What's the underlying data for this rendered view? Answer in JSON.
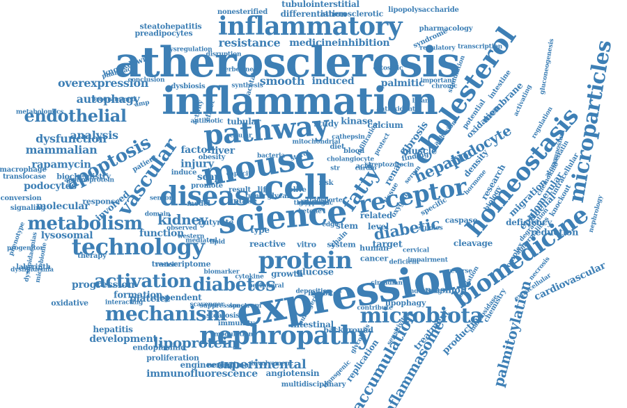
{
  "color": "#3d7fb5",
  "words": [
    {
      "text": "expression",
      "level": 5,
      "c": 0
    },
    {
      "text": "atherosclerosis",
      "level": 5,
      "c": 0
    },
    {
      "text": "inflammation",
      "level": 5,
      "c": 0
    },
    {
      "text": "science",
      "level": 5,
      "c": 0
    },
    {
      "text": "mouse",
      "level": 5,
      "c": 0
    },
    {
      "text": "pathway",
      "level": 5,
      "c": 0
    },
    {
      "text": "inflammatory",
      "level": 4,
      "c": 0
    },
    {
      "text": "technology",
      "level": 4,
      "c": 0
    },
    {
      "text": "cell",
      "level": 4,
      "c": 0
    },
    {
      "text": "protein",
      "level": 4,
      "c": 0
    },
    {
      "text": "cholesterol",
      "level": 4,
      "c": 0
    },
    {
      "text": "homeostasis",
      "level": 4,
      "c": 0
    },
    {
      "text": "microparticles",
      "level": 4,
      "c": 0
    },
    {
      "text": "biomedicine",
      "level": 4,
      "c": 0
    },
    {
      "text": "nephropathy",
      "level": 4,
      "c": 0
    },
    {
      "text": "receptor",
      "level": 4,
      "c": 0
    },
    {
      "text": "disease",
      "level": 4,
      "c": 0
    },
    {
      "text": "metabolism",
      "level": 4,
      "c": 0
    },
    {
      "text": "microbiota",
      "level": 4,
      "c": 0
    },
    {
      "text": "apoptosis",
      "level": 3,
      "c": 0
    },
    {
      "text": "vascular",
      "level": 3,
      "c": 0
    },
    {
      "text": "diabetes",
      "level": 3,
      "c": 0
    },
    {
      "text": "mechanism",
      "level": 3,
      "c": 0
    },
    {
      "text": "activation",
      "level": 3,
      "c": 0
    },
    {
      "text": "fatty",
      "level": 3,
      "c": 0
    },
    {
      "text": "diabetic",
      "level": 3,
      "c": 0
    },
    {
      "text": "endothelial",
      "level": 3,
      "c": 0
    },
    {
      "text": "hepatic",
      "level": 3,
      "c": 0
    },
    {
      "text": "podocyte",
      "level": 3,
      "c": 0
    },
    {
      "text": "kidney",
      "level": 3,
      "c": 0
    },
    {
      "text": "accumulation",
      "level": 3,
      "c": 0
    },
    {
      "text": "inflammasome",
      "level": 3,
      "c": 0
    },
    {
      "text": "palmitoylation",
      "level": 3,
      "c": 0
    },
    {
      "text": "lipoprotein",
      "level": 3,
      "c": 0
    },
    {
      "text": "experimental",
      "level": 3,
      "c": 0
    },
    {
      "text": "resistance",
      "level": 2,
      "c": 0
    },
    {
      "text": "medicine",
      "level": 2,
      "c": 0
    },
    {
      "text": "inhibition",
      "level": 2,
      "c": 0
    },
    {
      "text": "overexpression",
      "level": 2,
      "c": 0
    },
    {
      "text": "autophagy",
      "level": 2,
      "c": 0
    },
    {
      "text": "smooth",
      "level": 2,
      "c": 0
    },
    {
      "text": "induced",
      "level": 2,
      "c": 0
    },
    {
      "text": "palmitic",
      "level": 2,
      "c": 0
    },
    {
      "text": "dysfunction",
      "level": 2,
      "c": 0
    },
    {
      "text": "mammalian",
      "level": 2,
      "c": 0
    },
    {
      "text": "analysis",
      "level": 2,
      "c": 0
    },
    {
      "text": "rapamycin",
      "level": 2,
      "c": 0
    },
    {
      "text": "factor",
      "level": 2,
      "c": 0
    },
    {
      "text": "injury",
      "level": 2,
      "c": 0
    },
    {
      "text": "scap",
      "level": 2,
      "c": 0
    },
    {
      "text": "liver",
      "level": 2,
      "c": 0
    },
    {
      "text": "muscle",
      "level": 2,
      "c": 0
    },
    {
      "text": "fibrosis",
      "level": 2,
      "c": 0
    },
    {
      "text": "renal",
      "level": 2,
      "c": 0
    },
    {
      "text": "glomerular",
      "level": 2,
      "c": 0
    },
    {
      "text": "epithelial",
      "level": 2,
      "c": 0
    },
    {
      "text": "migration",
      "level": 2,
      "c": 0
    },
    {
      "text": "reduction",
      "level": 2,
      "c": 0
    },
    {
      "text": "cardiovascular",
      "level": 2,
      "c": 0
    },
    {
      "text": "glucose",
      "level": 2,
      "c": 0
    },
    {
      "text": "plasmon",
      "level": 2,
      "c": 0
    },
    {
      "text": "progression",
      "level": 2,
      "c": 0
    },
    {
      "text": "platelet",
      "level": 2,
      "c": 0
    },
    {
      "text": "development",
      "level": 2,
      "c": 0
    },
    {
      "text": "immunofluorescence",
      "level": 2,
      "c": 0
    },
    {
      "text": "function",
      "level": 2,
      "c": 0
    },
    {
      "text": "lysosomal",
      "level": 2,
      "c": 0
    },
    {
      "text": "molecular",
      "level": 2,
      "c": 0
    },
    {
      "text": "podocytes",
      "level": 2,
      "c": 0
    },
    {
      "text": "involved",
      "level": 2,
      "c": 0
    },
    {
      "text": "formation",
      "level": 2,
      "c": 0
    },
    {
      "text": "production",
      "level": 2,
      "c": 0
    },
    {
      "text": "replication",
      "level": 2,
      "c": 0
    },
    {
      "text": "treatment",
      "level": 2,
      "c": 0
    },
    {
      "text": "differentiation",
      "level": 1,
      "c": 0
    },
    {
      "text": "tubulointerstitial",
      "level": 1,
      "c": 0
    },
    {
      "text": "steatohepatitis",
      "level": 1,
      "c": 0
    },
    {
      "text": "preadipocytes",
      "level": 1,
      "c": 0
    },
    {
      "text": "knockdown",
      "level": 1,
      "c": 0
    },
    {
      "text": "atherosclerotic",
      "level": 1,
      "c": 0
    },
    {
      "text": "nonesterified",
      "level": 1,
      "c": 0
    },
    {
      "text": "lipopolysaccharide",
      "level": 1,
      "c": 0
    },
    {
      "text": "pharmacology",
      "level": 1,
      "c": 0
    },
    {
      "text": "syndrome",
      "level": 1,
      "c": 0
    },
    {
      "text": "regulatory",
      "level": 1,
      "c": 0
    },
    {
      "text": "transcription",
      "level": 1,
      "c": 0
    },
    {
      "text": "dysbiosis",
      "level": 1,
      "c": 0
    },
    {
      "text": "acetate",
      "level": 1,
      "c": 0
    },
    {
      "text": "tubular",
      "level": 1,
      "c": 0
    },
    {
      "text": "study",
      "level": 1,
      "c": 0
    },
    {
      "text": "kinase",
      "level": 1,
      "c": 0
    },
    {
      "text": "calcium",
      "level": 1,
      "c": 0
    },
    {
      "text": "related",
      "level": 1,
      "c": 0
    },
    {
      "text": "level",
      "level": 1,
      "c": 0
    },
    {
      "text": "target",
      "level": 1,
      "c": 0
    },
    {
      "text": "reactive",
      "level": 1,
      "c": 0
    },
    {
      "text": "vitro",
      "level": 1,
      "c": 0
    },
    {
      "text": "system",
      "level": 1,
      "c": 0
    },
    {
      "text": "growth",
      "level": 1,
      "c": 0
    },
    {
      "text": "stem",
      "level": 1,
      "c": 0
    },
    {
      "text": "chain",
      "level": 1,
      "c": 0
    },
    {
      "text": "type",
      "level": 1,
      "c": 0
    },
    {
      "text": "butyrate",
      "level": 1,
      "c": 0
    },
    {
      "text": "uptake",
      "level": 1,
      "c": 0
    },
    {
      "text": "promote",
      "level": 1,
      "c": 0
    },
    {
      "text": "response",
      "level": 1,
      "c": 0
    },
    {
      "text": "biochemistry",
      "level": 1,
      "c": 0
    },
    {
      "text": "macrophage",
      "level": 1,
      "c": 0
    },
    {
      "text": "translocase",
      "level": 1,
      "c": 0
    },
    {
      "text": "conversion",
      "level": 1,
      "c": 0
    },
    {
      "text": "signaling",
      "level": 1,
      "c": 0
    },
    {
      "text": "labyrinth",
      "level": 1,
      "c": 0
    },
    {
      "text": "therapy",
      "level": 1,
      "c": 0
    },
    {
      "text": "transcriptome",
      "level": 1,
      "c": 0
    },
    {
      "text": "oxidative",
      "level": 1,
      "c": 0
    },
    {
      "text": "dependent",
      "level": 1,
      "c": 0
    },
    {
      "text": "hepatitis",
      "level": 1,
      "c": 0
    },
    {
      "text": "steatosis",
      "level": 1,
      "c": 0
    },
    {
      "text": "immunity",
      "level": 1,
      "c": 0
    },
    {
      "text": "intestinal",
      "level": 1,
      "c": 0
    },
    {
      "text": "background",
      "level": 1,
      "c": 0
    },
    {
      "text": "endoplasmic",
      "level": 1,
      "c": 0
    },
    {
      "text": "proliferation",
      "level": 1,
      "c": 0
    },
    {
      "text": "engineering",
      "level": 1,
      "c": 0
    },
    {
      "text": "neointimal",
      "level": 1,
      "c": 0
    },
    {
      "text": "angiotensin",
      "level": 1,
      "c": 0
    },
    {
      "text": "multidisciplinary",
      "level": 1,
      "c": 0
    },
    {
      "text": "cleavage",
      "level": 1,
      "c": 0
    },
    {
      "text": "caspase",
      "level": 1,
      "c": 0
    },
    {
      "text": "deficiency",
      "level": 1,
      "c": 0
    },
    {
      "text": "research",
      "level": 1,
      "c": 0
    },
    {
      "text": "density",
      "level": 1,
      "c": 0
    },
    {
      "text": "oxidation",
      "level": 1,
      "c": 0
    },
    {
      "text": "membrane",
      "level": 1,
      "c": 0
    },
    {
      "text": "potential",
      "level": 1,
      "c": 0
    },
    {
      "text": "lipophagy",
      "level": 1,
      "c": 0
    },
    {
      "text": "complex",
      "level": 1,
      "c": 0
    },
    {
      "text": "chemistry",
      "level": 1,
      "c": 0
    },
    {
      "text": "necrosis",
      "level": 1,
      "c": 0
    },
    {
      "text": "extracellular",
      "level": 1,
      "c": 0
    },
    {
      "text": "intracellular",
      "level": 1,
      "c": 0
    },
    {
      "text": "knockout",
      "level": 1,
      "c": 0
    },
    {
      "text": "biology",
      "level": 1,
      "c": 0
    },
    {
      "text": "cancer",
      "level": 1,
      "c": 0
    },
    {
      "text": "human",
      "level": 1,
      "c": 0
    },
    {
      "text": "tissue",
      "level": 1,
      "c": 0
    },
    {
      "text": "oxygen",
      "level": 1,
      "c": 0
    },
    {
      "text": "life",
      "level": 1,
      "c": 0
    },
    {
      "text": "patient",
      "level": 1,
      "c": 0
    },
    {
      "text": "progenitor",
      "level": 1,
      "c": 0
    },
    {
      "text": "dyslipidemia",
      "level": 1,
      "c": 0
    },
    {
      "text": "dyslipidaemias",
      "level": 1,
      "c": 0
    },
    {
      "text": "microbiome",
      "level": 1,
      "c": 0
    },
    {
      "text": "interacting",
      "level": 1,
      "c": 0
    },
    {
      "text": "scavenger",
      "level": 1,
      "c": 0
    },
    {
      "text": "spectrum",
      "level": 1,
      "c": 0
    },
    {
      "text": "inhibitor",
      "level": 1,
      "c": 0
    },
    {
      "text": "deficient",
      "level": 1,
      "c": 0
    },
    {
      "text": "cervical",
      "level": 1,
      "c": 0
    },
    {
      "text": "underlying",
      "level": 1,
      "c": 0
    },
    {
      "text": "association",
      "level": 1,
      "c": 0
    },
    {
      "text": "regulation",
      "level": 1,
      "c": 0
    },
    {
      "text": "gluconeogenesis",
      "level": 1,
      "c": 0
    },
    {
      "text": "intestine",
      "level": 1,
      "c": 0
    },
    {
      "text": "activating",
      "level": 1,
      "c": 0
    },
    {
      "text": "mannosidase",
      "level": 1,
      "c": 0
    },
    {
      "text": "protect",
      "level": 1,
      "c": 0
    },
    {
      "text": "finding",
      "level": 1,
      "c": 0
    },
    {
      "text": "specific",
      "level": 1,
      "c": 0
    },
    {
      "text": "studies",
      "level": 1,
      "c": 0
    },
    {
      "text": "acid",
      "level": 1,
      "c": 0
    },
    {
      "text": "risk",
      "level": 1,
      "c": 0
    },
    {
      "text": "diet",
      "level": 1,
      "c": 0
    },
    {
      "text": "blood",
      "level": 1,
      "c": 0
    },
    {
      "text": "olive",
      "level": 1,
      "c": 0
    },
    {
      "text": "glycan",
      "level": 1,
      "c": 0
    },
    {
      "text": "model",
      "level": 1,
      "c": 0
    },
    {
      "text": "obesity",
      "level": 1,
      "c": 0
    },
    {
      "text": "induce",
      "level": 1,
      "c": 0
    },
    {
      "text": "result",
      "level": 1,
      "c": 0
    },
    {
      "text": "effect",
      "level": 1,
      "c": 0
    },
    {
      "text": "activity",
      "level": 1,
      "c": 0
    },
    {
      "text": "antibiotic",
      "level": 1,
      "c": 0
    },
    {
      "text": "berberine",
      "level": 1,
      "c": 0
    },
    {
      "text": "synthesis",
      "level": 1,
      "c": 0
    },
    {
      "text": "disruption",
      "level": 1,
      "c": 0
    },
    {
      "text": "dysregulation",
      "level": 1,
      "c": 0
    },
    {
      "text": "pharmacy",
      "level": 1,
      "c": 0
    },
    {
      "text": "metabolomics",
      "level": 1,
      "c": 0
    },
    {
      "text": "programmed",
      "level": 1,
      "c": 0
    },
    {
      "text": "conclusion",
      "level": 1,
      "c": 0
    },
    {
      "text": "important",
      "level": 1,
      "c": 0
    },
    {
      "text": "chronic",
      "level": 1,
      "c": 0
    },
    {
      "text": "chemokine",
      "level": 1,
      "c": 0
    },
    {
      "text": "atorvastatin",
      "level": 1,
      "c": 0
    },
    {
      "text": "symposium",
      "level": 1,
      "c": 0
    },
    {
      "text": "degradation",
      "level": 1,
      "c": 0
    },
    {
      "text": "abnormalities",
      "level": 1,
      "c": 0
    },
    {
      "text": "nephrology",
      "level": 1,
      "c": 0
    },
    {
      "text": "suppression",
      "level": 1,
      "c": 0
    },
    {
      "text": "modulation",
      "level": 1,
      "c": 0
    },
    {
      "text": "involvement",
      "level": 1,
      "c": 0
    },
    {
      "text": "transgenic",
      "level": 1,
      "c": 0
    },
    {
      "text": "puringeric",
      "level": 1,
      "c": 0
    },
    {
      "text": "apolipoprotein",
      "level": 1,
      "c": 0
    },
    {
      "text": "phenotype",
      "level": 1,
      "c": 0
    },
    {
      "text": "amp",
      "level": 1,
      "c": 0
    },
    {
      "text": "str",
      "level": 1,
      "c": 0
    },
    {
      "text": "cardio",
      "level": 1,
      "c": 0
    },
    {
      "text": "tumor",
      "level": 1,
      "c": 0
    },
    {
      "text": "ketone",
      "level": 1,
      "c": 0
    },
    {
      "text": "edge",
      "level": 1,
      "c": 0
    },
    {
      "text": "infiltration",
      "level": 1,
      "c": 0
    },
    {
      "text": "bacteria",
      "level": 1,
      "c": 0
    },
    {
      "text": "sterol",
      "level": 1,
      "c": 0
    },
    {
      "text": "capacity",
      "level": 1,
      "c": 0
    },
    {
      "text": "western",
      "level": 1,
      "c": 0
    },
    {
      "text": "domain",
      "level": 1,
      "c": 0
    },
    {
      "text": "observed",
      "level": 1,
      "c": 0
    },
    {
      "text": "mediated",
      "level": 1,
      "c": 0
    },
    {
      "text": "lipid",
      "level": 1,
      "c": 0
    },
    {
      "text": "biomarker",
      "level": 1,
      "c": 0
    },
    {
      "text": "cytokine",
      "level": 1,
      "c": 0
    },
    {
      "text": "peripheral",
      "level": 1,
      "c": 0
    },
    {
      "text": "deposition",
      "level": 1,
      "c": 0
    },
    {
      "text": "contribute",
      "level": 1,
      "c": 0
    },
    {
      "text": "circadian",
      "level": 1,
      "c": 0
    },
    {
      "text": "sensitivity",
      "level": 1,
      "c": 0
    },
    {
      "text": "glycolysis",
      "level": 1,
      "c": 0
    },
    {
      "text": "impairment",
      "level": 1,
      "c": 0
    },
    {
      "text": "reverse",
      "level": 1,
      "c": 0
    },
    {
      "text": "hormone",
      "level": 1,
      "c": 0
    },
    {
      "text": "serum",
      "level": 1,
      "c": 0
    },
    {
      "text": "adhesion",
      "level": 1,
      "c": 0
    },
    {
      "text": "stimulation",
      "level": 1,
      "c": 0
    },
    {
      "text": "ligand",
      "level": 1,
      "c": 0
    },
    {
      "text": "cytosolic",
      "level": 1,
      "c": 0
    },
    {
      "text": "antioxidant",
      "level": 1,
      "c": 0
    },
    {
      "text": "streptozotocin",
      "level": 1,
      "c": 0
    },
    {
      "text": "cholangiocyte",
      "level": 1,
      "c": 0
    },
    {
      "text": "cathepsin",
      "level": 1,
      "c": 0
    },
    {
      "text": "transporter",
      "level": 1,
      "c": 0
    },
    {
      "text": "mitochondrial",
      "level": 1,
      "c": 0
    },
    {
      "text": "cellular",
      "level": 1,
      "c": 0
    },
    {
      "text": "sensor",
      "level": 1,
      "c": 0
    },
    {
      "text": "vesicle",
      "level": 1,
      "c": 0
    },
    {
      "text": "retention",
      "level": 1,
      "c": 0
    },
    {
      "text": "dietary",
      "level": 1,
      "c": 0
    },
    {
      "text": "fasting",
      "level": 1,
      "c": 0
    },
    {
      "text": "genomic",
      "level": 1,
      "c": 0
    },
    {
      "text": "exosome",
      "level": 1,
      "c": 0
    },
    {
      "text": "hypoxia",
      "level": 1,
      "c": 0
    },
    {
      "text": "clinical",
      "level": 1,
      "c": 0
    },
    {
      "text": "therapeutic",
      "level": 1,
      "c": 0
    }
  ]
}
